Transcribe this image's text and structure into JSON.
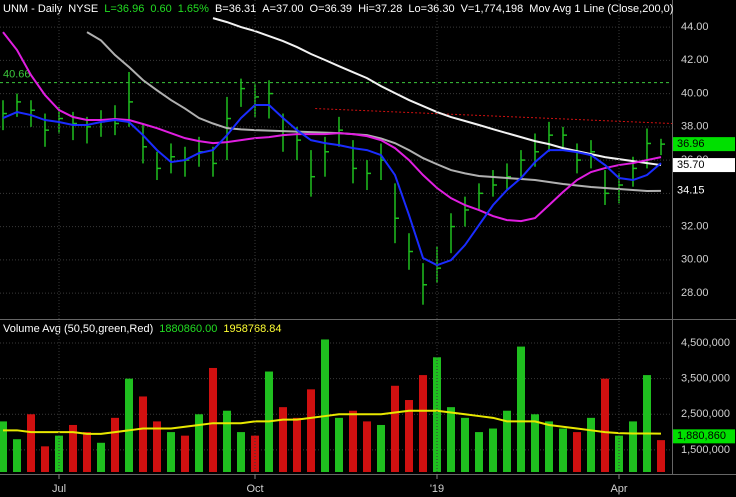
{
  "chart_data": [
    {
      "type": "hlc",
      "header": [
        {
          "text": "UNM - Daily",
          "color": "#ffffff"
        },
        {
          "text": "NYSE",
          "color": "#ffffff"
        },
        {
          "text": "L=36.96",
          "color": "#22dd22"
        },
        {
          "text": "0.60",
          "color": "#22dd22"
        },
        {
          "text": "1.65%",
          "color": "#22dd22"
        },
        {
          "text": "B=36.31",
          "color": "#ffffff"
        },
        {
          "text": "A=37.00",
          "color": "#ffffff"
        },
        {
          "text": "O=36.39",
          "color": "#ffffff"
        },
        {
          "text": "Hi=37.28",
          "color": "#ffffff"
        },
        {
          "text": "Lo=36.30",
          "color": "#ffffff"
        },
        {
          "text": "V=1,774,198",
          "color": "#ffffff"
        },
        {
          "text": "Mov Avg 1 Line (Close,200,0)",
          "color": "#ffffff"
        }
      ],
      "categories": [
        null,
        null,
        null,
        null,
        "Jul",
        null,
        null,
        null,
        null,
        null,
        null,
        null,
        null,
        null,
        null,
        null,
        null,
        null,
        "Oct",
        null,
        null,
        null,
        null,
        null,
        null,
        null,
        null,
        null,
        null,
        null,
        null,
        "'19",
        null,
        null,
        null,
        null,
        null,
        null,
        null,
        null,
        null,
        null,
        null,
        null,
        "Apr",
        null,
        null,
        null
      ],
      "bar_color": "#1fbf1f",
      "high": [
        39.6,
        40.0,
        39.6,
        38.8,
        39.2,
        38.9,
        38.6,
        39.0,
        39.3,
        41.3,
        38.2,
        36.5,
        37.0,
        36.8,
        37.4,
        36.8,
        39.8,
        40.9,
        40.6,
        40.8,
        38.8,
        38.0,
        36.6,
        37.4,
        38.6,
        37.2,
        36.0,
        37.0,
        34.6,
        31.6,
        29.8,
        30.8,
        32.8,
        33.8,
        34.6,
        35.4,
        35.8,
        36.6,
        37.6,
        38.3,
        38.0,
        37.0,
        37.2,
        35.4,
        35.2,
        36.2,
        37.9,
        37.28
      ],
      "low": [
        37.8,
        38.6,
        38.0,
        36.8,
        37.6,
        37.2,
        37.0,
        37.4,
        37.5,
        38.0,
        35.8,
        34.8,
        35.2,
        35.0,
        35.6,
        35.0,
        36.0,
        39.2,
        38.6,
        38.5,
        36.5,
        36.0,
        33.8,
        35.0,
        36.8,
        34.6,
        34.2,
        34.8,
        31.0,
        29.4,
        27.3,
        28.6,
        30.4,
        32.0,
        33.0,
        33.8,
        34.2,
        35.0,
        35.6,
        36.5,
        36.6,
        35.2,
        35.5,
        33.3,
        33.4,
        34.4,
        35.5,
        36.3
      ],
      "close": [
        38.8,
        39.5,
        39.0,
        37.8,
        38.5,
        38.2,
        38.0,
        38.3,
        38.2,
        39.5,
        36.8,
        35.5,
        36.2,
        36.0,
        36.5,
        35.8,
        38.5,
        40.3,
        39.8,
        40.0,
        37.5,
        37.2,
        35.0,
        36.5,
        37.8,
        35.5,
        35.2,
        36.0,
        32.5,
        30.5,
        28.5,
        29.5,
        32.0,
        33.0,
        34.0,
        34.5,
        35.0,
        36.0,
        36.5,
        37.5,
        37.5,
        36.0,
        36.5,
        34.0,
        34.5,
        35.5,
        37.0,
        36.96
      ],
      "series": [
        {
          "color": "#b0b0b0",
          "values": [
            null,
            null,
            null,
            null,
            null,
            null,
            43.7,
            43.2,
            42.32,
            41.6,
            40.81,
            40.2,
            39.61,
            39.1,
            38.53,
            38.2,
            37.92,
            37.85,
            37.8,
            37.77,
            37.74,
            37.71,
            37.68,
            37.65,
            37.62,
            37.56,
            37.5,
            37.3,
            37.02,
            36.6,
            36.12,
            35.75,
            35.4,
            35.2,
            35.04,
            34.98,
            34.92,
            34.86,
            34.8,
            34.68,
            34.56,
            34.47,
            34.38,
            34.32,
            34.26,
            34.2,
            34.14,
            34.15
          ]
        },
        {
          "color": "#f2f2f2",
          "values": [
            null,
            null,
            null,
            null,
            null,
            null,
            null,
            null,
            null,
            null,
            null,
            null,
            null,
            null,
            null,
            44.54,
            44.3,
            44.0,
            43.76,
            43.46,
            43.16,
            42.8,
            42.38,
            42.02,
            41.65,
            41.29,
            40.93,
            40.45,
            40.03,
            39.61,
            39.25,
            38.89,
            38.59,
            38.35,
            38.11,
            37.86,
            37.62,
            37.38,
            37.14,
            36.96,
            36.72,
            36.54,
            36.36,
            36.18,
            36.06,
            35.94,
            35.82,
            35.7
          ]
        },
        {
          "color": "#e01ee0",
          "values": [
            43.7,
            42.62,
            41.11,
            39.91,
            39.01,
            38.59,
            38.41,
            38.41,
            38.47,
            38.41,
            38.17,
            37.92,
            37.62,
            37.32,
            37.14,
            37.02,
            37.08,
            37.2,
            37.32,
            37.38,
            37.5,
            37.56,
            37.56,
            37.56,
            37.62,
            37.56,
            37.44,
            37.2,
            36.72,
            36.0,
            35.1,
            34.32,
            33.71,
            33.29,
            32.99,
            32.63,
            32.39,
            32.33,
            32.51,
            33.29,
            34.08,
            34.8,
            35.28,
            35.52,
            35.7,
            35.82,
            36.0,
            36.18
          ]
        },
        {
          "color": "#1a2cff",
          "values": [
            38.53,
            38.89,
            38.71,
            38.41,
            38.29,
            38.11,
            38.11,
            38.29,
            38.41,
            38.29,
            37.5,
            36.6,
            35.88,
            36.0,
            36.42,
            36.6,
            37.5,
            38.53,
            39.31,
            39.31,
            38.53,
            37.8,
            37.2,
            37.02,
            36.9,
            36.72,
            36.6,
            36.3,
            35.1,
            32.69,
            30.11,
            29.68,
            29.98,
            30.89,
            32.09,
            33.29,
            34.2,
            34.92,
            35.88,
            36.6,
            36.6,
            36.48,
            36.3,
            35.7,
            34.92,
            34.8,
            35.1,
            35.82
          ]
        }
      ],
      "hlines": [
        {
          "value": 40.66,
          "color": "#3cc83c"
        }
      ],
      "trendline": {
        "color": "#d01010",
        "x": [
          22.3,
          47.8
        ],
        "y": [
          39.1,
          38.2
        ]
      },
      "end_labels": [
        {
          "value": 36.96,
          "bg": "#00e000",
          "fg": "#000000"
        },
        {
          "value": 35.7,
          "label": "35.70",
          "bg": "#ffffff",
          "fg": "#000000"
        },
        {
          "value": 34.15,
          "bg": "#000000",
          "fg": "#ffffff"
        }
      ],
      "ylim": [
        26.5,
        45.63
      ],
      "yticks": [
        {
          "value": 28,
          "label": "28.00"
        },
        {
          "value": 30,
          "label": "30.00"
        },
        {
          "value": 32,
          "label": "32.00"
        },
        {
          "value": 34,
          "label": "34.00"
        },
        {
          "value": 36,
          "label": "36.00"
        },
        {
          "value": 38,
          "label": "38.00"
        },
        {
          "value": 40,
          "label": "40.00"
        },
        {
          "value": 42,
          "label": "42.00"
        },
        {
          "value": 44,
          "label": "44.00"
        }
      ],
      "grid": true
    },
    {
      "type": "volume",
      "legend": [
        {
          "text": "Volume Avg (50,50,green,Red)",
          "color": "#ffffff"
        },
        {
          "text": "1880860.00",
          "color": "#22dd22"
        },
        {
          "text": "1958768.84",
          "color": "#ffff33"
        }
      ],
      "up_color": "#1fbf1f",
      "down_color": "#d01010",
      "values": [
        2300000,
        1800000,
        2500000,
        1600000,
        1900000,
        2200000,
        2000000,
        1700000,
        2400000,
        3500000,
        3000000,
        2300000,
        2000000,
        1900000,
        2500000,
        3800000,
        2600000,
        2000000,
        1900000,
        3700000,
        2700000,
        2400000,
        3200000,
        4600000,
        2400000,
        2600000,
        2300000,
        2200000,
        3300000,
        2900000,
        3600000,
        4100000,
        2700000,
        2400000,
        2000000,
        2100000,
        2600000,
        4400000,
        2500000,
        2300000,
        2100000,
        2000000,
        2400000,
        3500000,
        1900000,
        2300000,
        3600000,
        1774198
      ],
      "series": [
        {
          "color": "#e8e800",
          "values": [
            2050000,
            2050000,
            2000000,
            2000000,
            2000000,
            2000000,
            1950000,
            1950000,
            2000000,
            2050000,
            2100000,
            2100000,
            2100000,
            2150000,
            2200000,
            2250000,
            2250000,
            2250000,
            2300000,
            2300000,
            2350000,
            2350000,
            2400000,
            2450000,
            2500000,
            2500000,
            2500000,
            2500000,
            2550000,
            2600000,
            2600000,
            2600000,
            2550000,
            2500000,
            2450000,
            2400000,
            2300000,
            2300000,
            2300000,
            2200000,
            2150000,
            2100000,
            2050000,
            2000000,
            1970000,
            1960000,
            1960000,
            1958768.84
          ]
        }
      ],
      "end_labels": [
        {
          "value": 1880860,
          "label": "1,880,860",
          "bg": "#00e000",
          "fg": "#000000"
        }
      ],
      "ylim": [
        880000,
        5090000
      ],
      "yticks": [
        {
          "value": 1500000,
          "label": "1,500,000"
        },
        {
          "value": 2500000,
          "label": "2,500,000"
        },
        {
          "value": 3500000,
          "label": "3,500,000"
        },
        {
          "value": 4500000,
          "label": "4,500,000"
        }
      ],
      "grid": true
    }
  ]
}
